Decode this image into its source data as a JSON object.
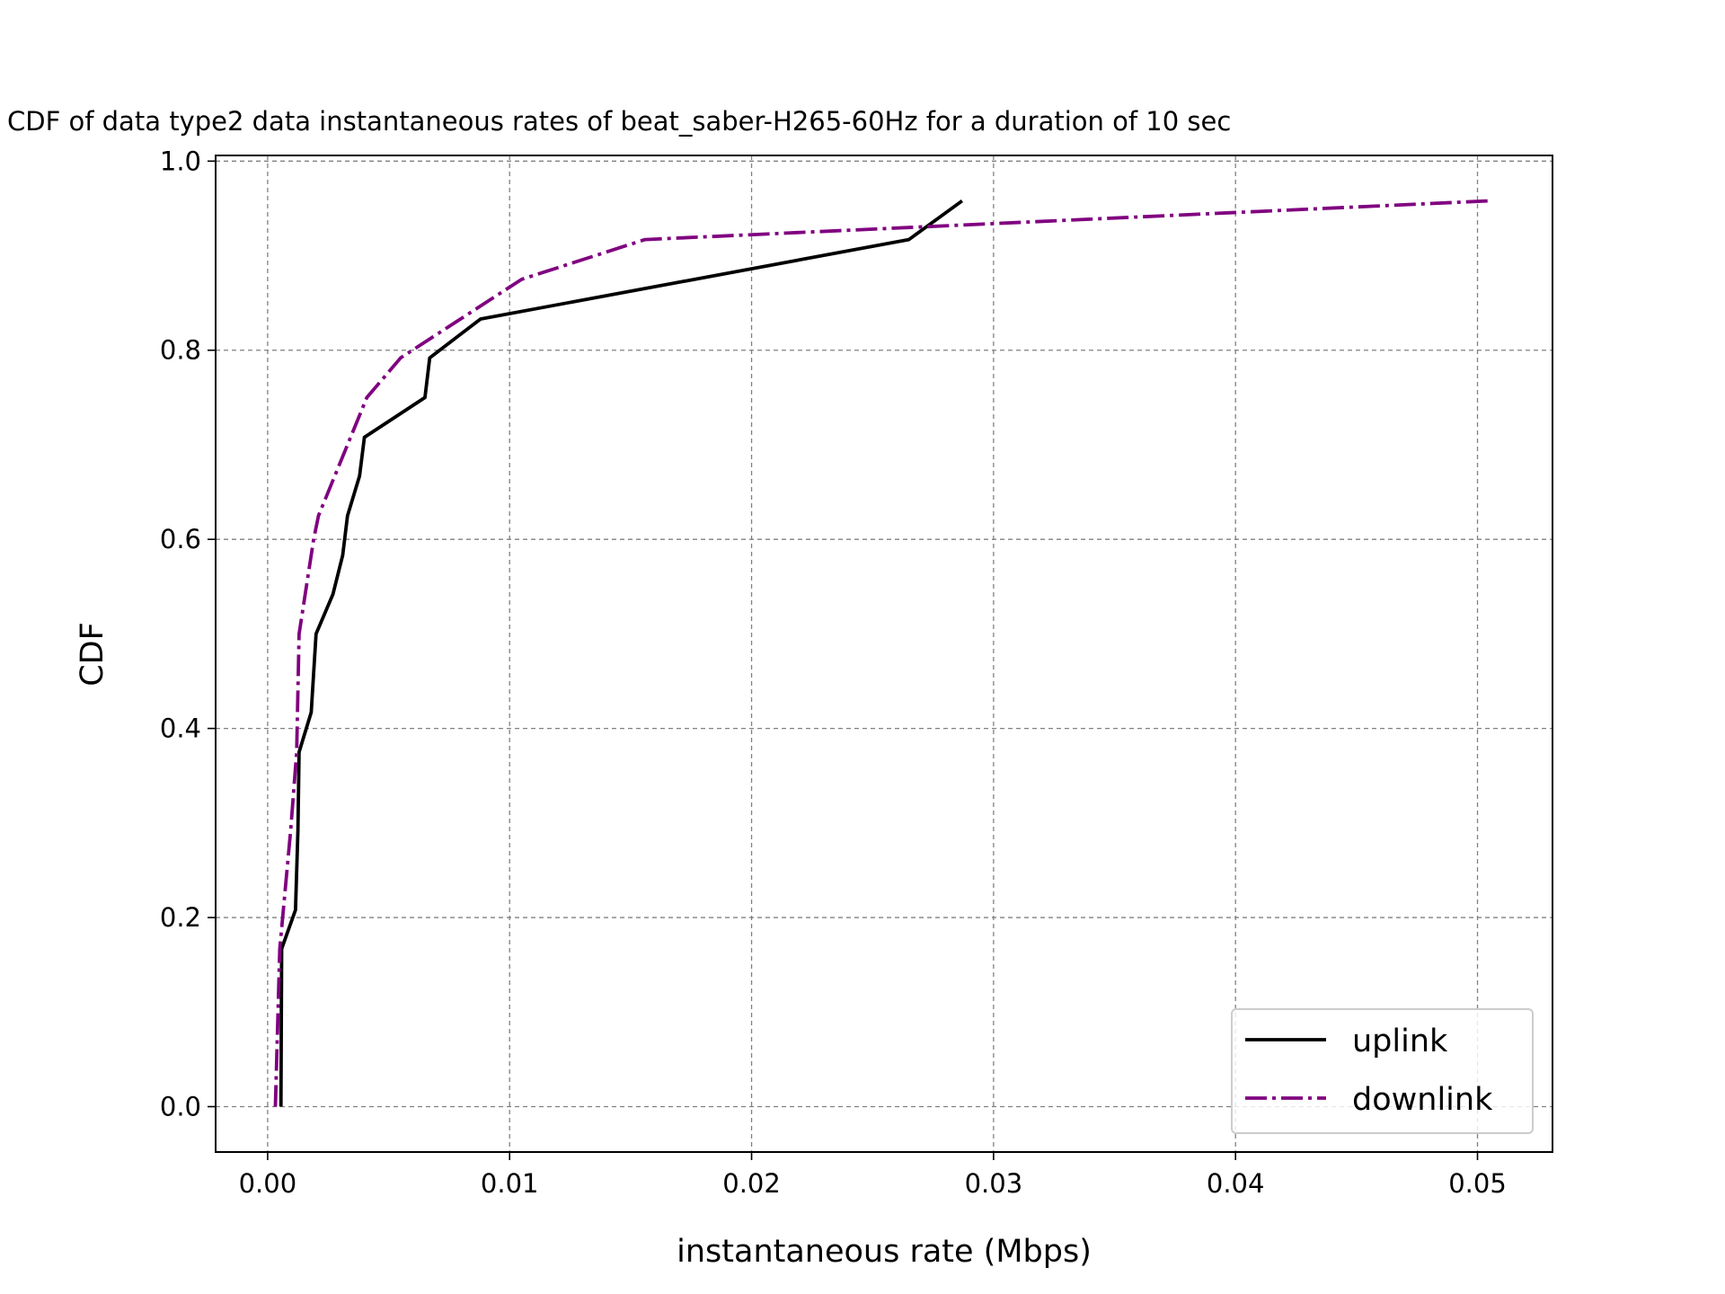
{
  "chart_data": {
    "type": "line",
    "title": "CDF of data type2 data instantaneous rates of beat_saber-H265-60Hz for a duration of 10 sec",
    "xlabel": "instantaneous rate (Mbps)",
    "ylabel": "CDF",
    "xlim": [
      -0.00215,
      0.0531
    ],
    "ylim": [
      -0.048,
      1.006
    ],
    "xticks": [
      0.0,
      0.01,
      0.02,
      0.03,
      0.04,
      0.05
    ],
    "xtick_labels": [
      "0.00",
      "0.01",
      "0.02",
      "0.03",
      "0.04",
      "0.05"
    ],
    "yticks": [
      0.0,
      0.2,
      0.4,
      0.6,
      0.8,
      1.0
    ],
    "ytick_labels": [
      "0.0",
      "0.2",
      "0.4",
      "0.6",
      "0.8",
      "1.0"
    ],
    "grid": true,
    "legend": {
      "position": "lower-right",
      "entries": [
        "uplink",
        "downlink"
      ]
    },
    "series": [
      {
        "name": "uplink",
        "color": "#000000",
        "style": "solid",
        "points": [
          [
            0.00055,
            0.0
          ],
          [
            0.00058,
            0.167
          ],
          [
            0.00115,
            0.208
          ],
          [
            0.00125,
            0.292
          ],
          [
            0.0013,
            0.375
          ],
          [
            0.0018,
            0.417
          ],
          [
            0.002,
            0.5
          ],
          [
            0.0027,
            0.542
          ],
          [
            0.0031,
            0.583
          ],
          [
            0.0033,
            0.625
          ],
          [
            0.0038,
            0.667
          ],
          [
            0.004,
            0.708
          ],
          [
            0.0065,
            0.75
          ],
          [
            0.0067,
            0.792
          ],
          [
            0.0088,
            0.833
          ],
          [
            0.0265,
            0.917
          ],
          [
            0.0287,
            0.958
          ]
        ]
      },
      {
        "name": "downlink",
        "color": "#800080",
        "style": "dashdot",
        "points": [
          [
            0.00032,
            0.0
          ],
          [
            0.0005,
            0.167
          ],
          [
            0.00095,
            0.292
          ],
          [
            0.0012,
            0.375
          ],
          [
            0.0013,
            0.5
          ],
          [
            0.0019,
            0.6
          ],
          [
            0.0021,
            0.625
          ],
          [
            0.0041,
            0.75
          ],
          [
            0.0055,
            0.792
          ],
          [
            0.0105,
            0.875
          ],
          [
            0.0156,
            0.917
          ],
          [
            0.0505,
            0.958
          ]
        ]
      }
    ]
  }
}
